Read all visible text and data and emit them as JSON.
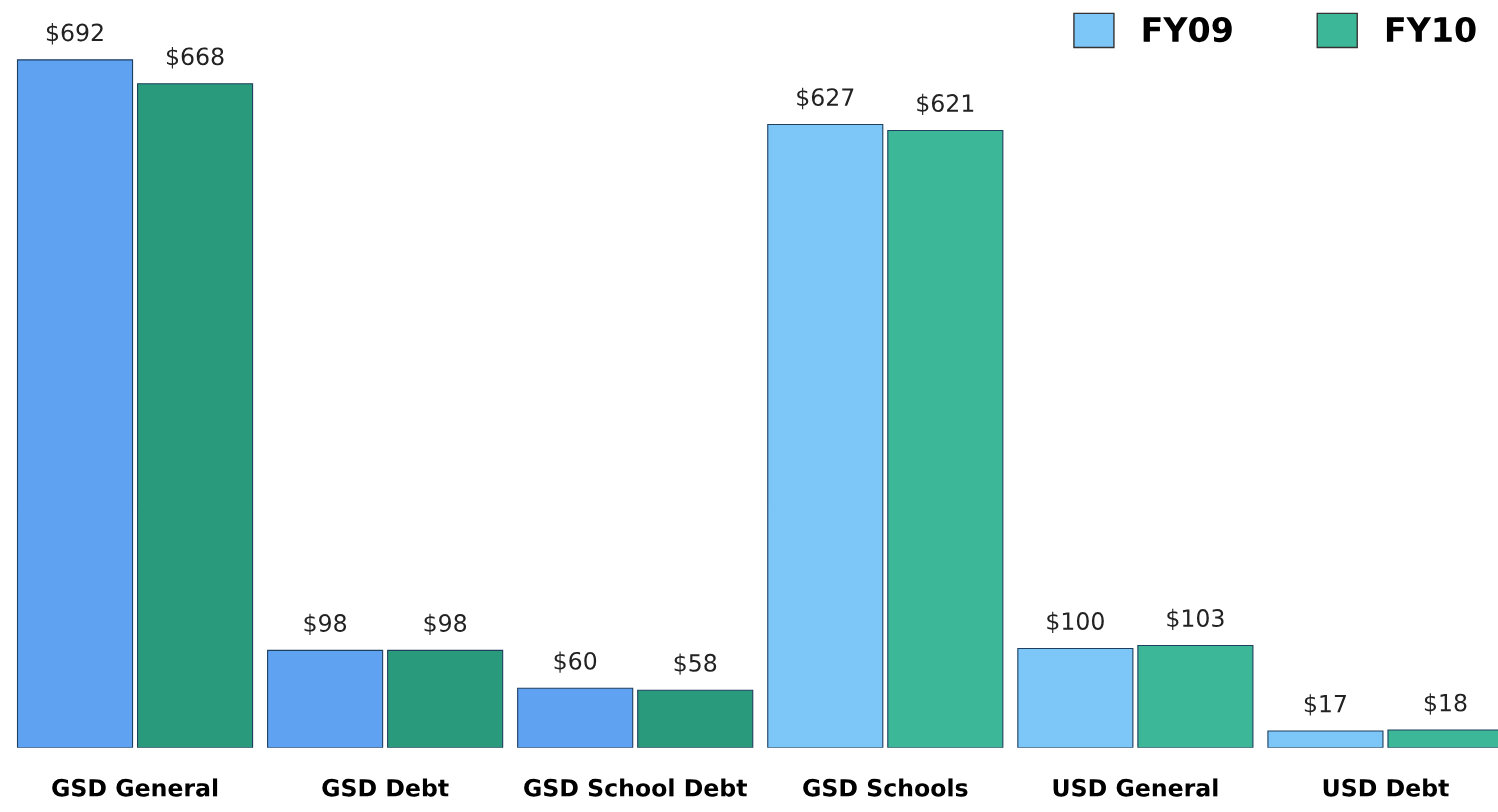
{
  "chart_data": {
    "type": "bar",
    "categories": [
      "GSD General",
      "GSD Debt",
      "GSD School Debt",
      "GSD Schools",
      "USD General",
      "USD Debt"
    ],
    "series": [
      {
        "name": "FY09",
        "color": "#7cc6f8",
        "colors": [
          "#5fa2f2",
          "#5fa2f2",
          "#5fa2f2",
          "#7cc6f8",
          "#7cc6f8",
          "#7cc6f8"
        ],
        "values": [
          692,
          98,
          60,
          627,
          100,
          17
        ],
        "value_labels": [
          "$692",
          "$98",
          "$60",
          "$627",
          "$100",
          "$17"
        ]
      },
      {
        "name": "FY10",
        "color": "#3cb898",
        "colors": [
          "#2a9a7c",
          "#2a9a7c",
          "#2a9a7c",
          "#3cb898",
          "#3cb898",
          "#3cb898"
        ],
        "values": [
          668,
          98,
          58,
          621,
          103,
          18
        ],
        "value_labels": [
          "$668",
          "$98",
          "$58",
          "$621",
          "$103",
          "$18"
        ]
      }
    ],
    "legend": "top right"
  }
}
